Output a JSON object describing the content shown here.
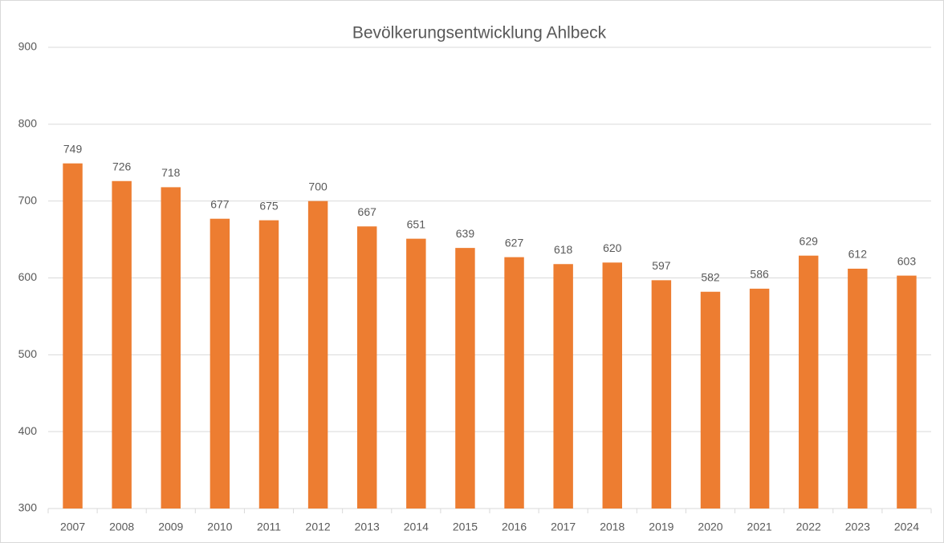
{
  "chart_data": {
    "type": "bar",
    "title": "Bevölkerungsentwicklung Ahlbeck",
    "categories": [
      "2007",
      "2008",
      "2009",
      "2010",
      "2011",
      "2012",
      "2013",
      "2014",
      "2015",
      "2016",
      "2017",
      "2018",
      "2019",
      "2020",
      "2021",
      "2022",
      "2023",
      "2024"
    ],
    "values": [
      749,
      726,
      718,
      677,
      675,
      700,
      667,
      651,
      639,
      627,
      618,
      620,
      597,
      582,
      586,
      629,
      612,
      603
    ],
    "color": "#ed7d31",
    "ylim": [
      300,
      900
    ],
    "yticks": [
      300,
      400,
      500,
      600,
      700,
      800,
      900
    ],
    "grid": true,
    "data_labels": true
  }
}
